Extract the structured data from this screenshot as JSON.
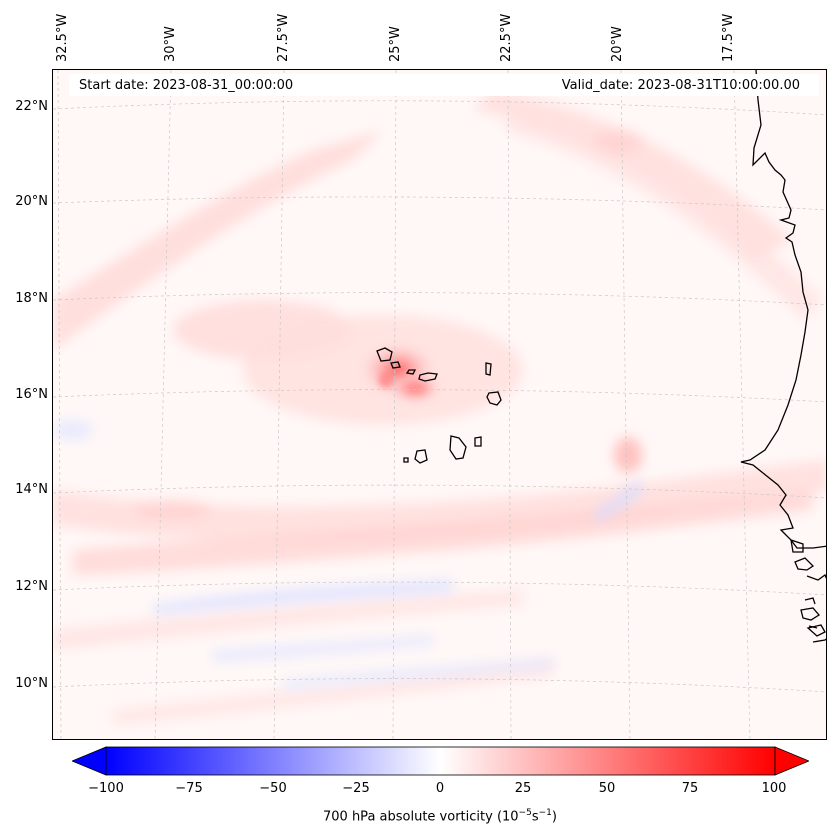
{
  "map": {
    "header": {
      "start_date": "Start date: 2023-08-31_00:00:00",
      "valid_date": "Valid_date: 2023-08-31T10:00:00.00"
    },
    "longitude_labels": [
      "32.5°W",
      "30°W",
      "27.5°W",
      "25°W",
      "22.5°W",
      "20°W",
      "17.5°W"
    ],
    "latitude_labels": [
      "22°N",
      "20°N",
      "18°N",
      "16°N",
      "14°N",
      "12°N",
      "10°N"
    ],
    "features": [
      "Cape Verde islands",
      "West African coastline"
    ],
    "colors": {
      "positive": "#ff0000",
      "negative": "#0000ff",
      "neutral": "#ffffff"
    }
  },
  "colorbar": {
    "ticks": [
      "−100",
      "−75",
      "−50",
      "−25",
      "0",
      "25",
      "50",
      "75",
      "100"
    ],
    "label": "700 hPa absolute vorticity (10",
    "label_exp1": "−5",
    "label_mid": "s",
    "label_exp2": "−1",
    "label_end": ")",
    "min": -100,
    "max": 100
  }
}
